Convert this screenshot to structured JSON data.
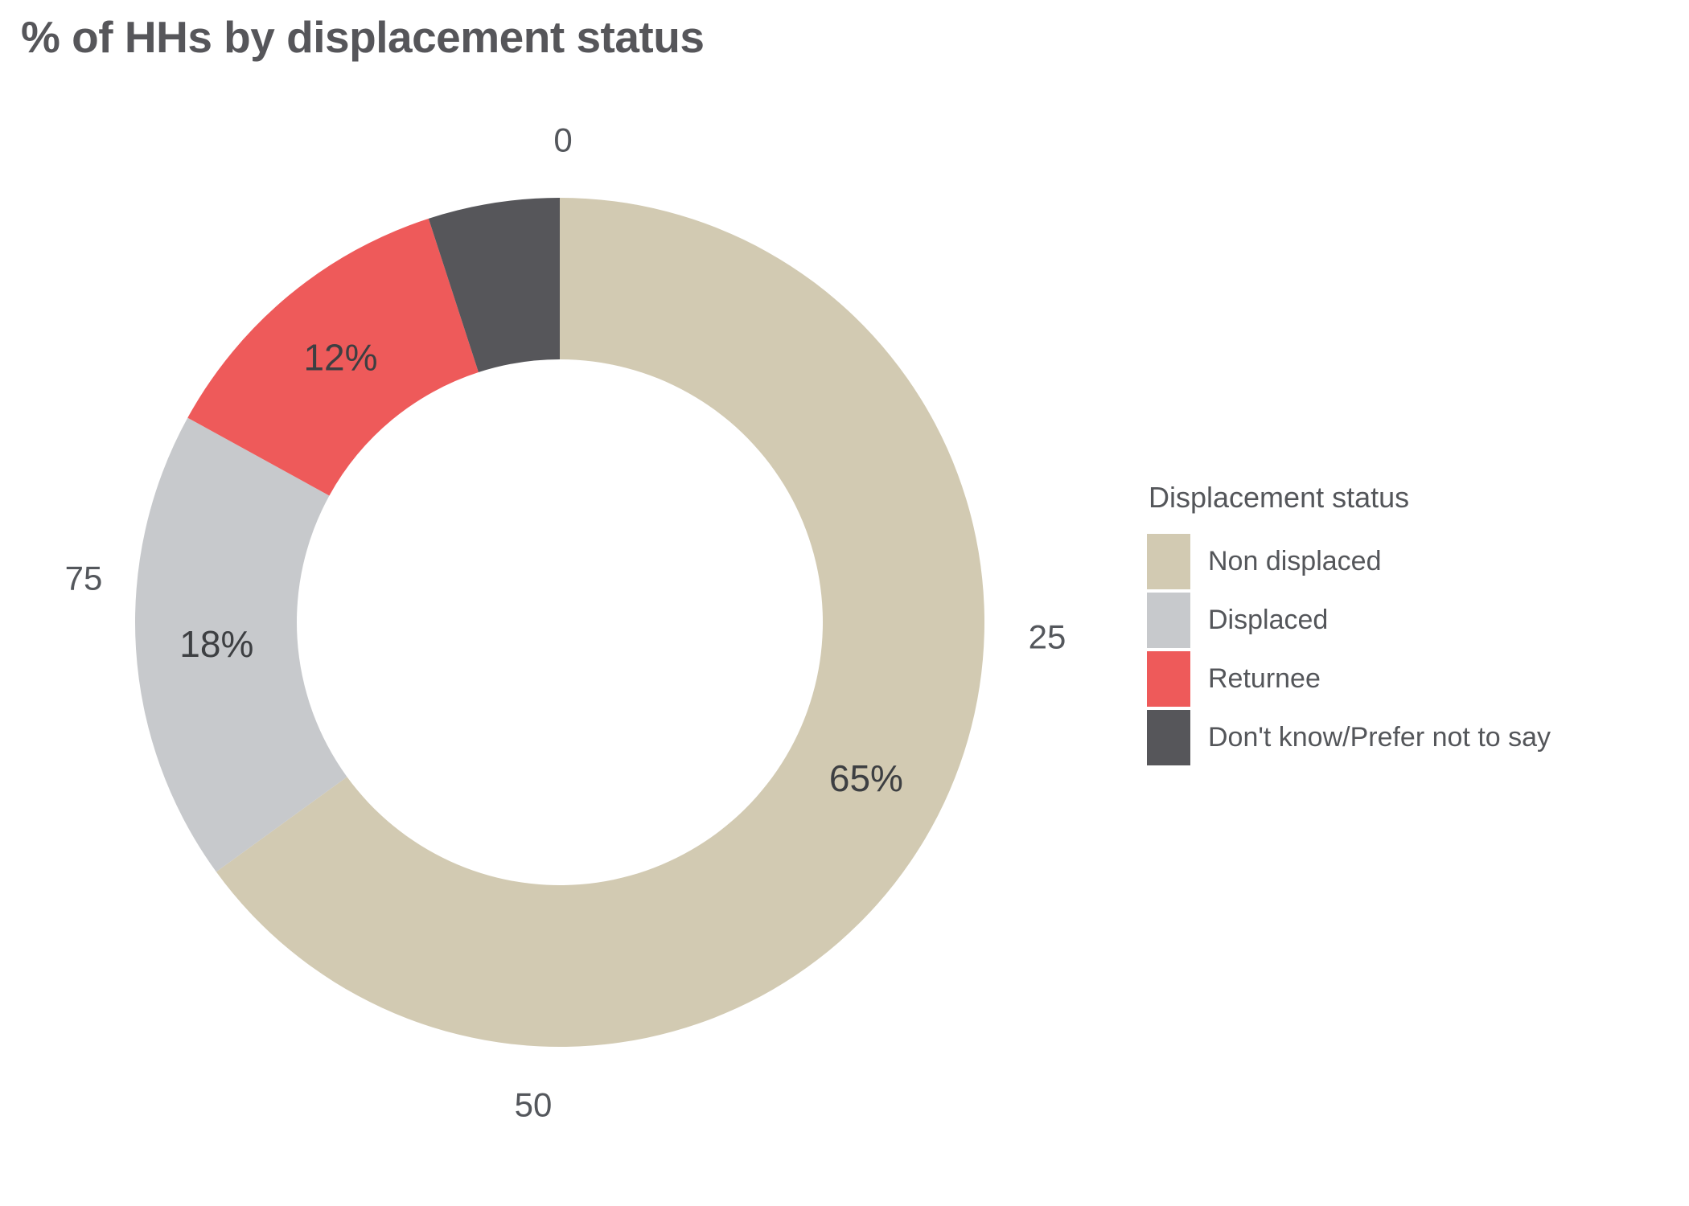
{
  "chart_data": {
    "type": "pie",
    "subtype": "donut",
    "title": "% of HHs by displacement status",
    "legend_title": "Displacement status",
    "legend_position": "right",
    "categories": [
      "Non displaced",
      "Displaced",
      "Returnee",
      "Don't know/Prefer not to say"
    ],
    "values": [
      65,
      18,
      12,
      5
    ],
    "data_labels": [
      "65%",
      "18%",
      "12%",
      null
    ],
    "colors": [
      "#d2cab2",
      "#c7c9cc",
      "#ee5a5a",
      "#56565a"
    ],
    "axis_ticks": [
      0,
      25,
      50,
      75
    ],
    "axis_range": [
      0,
      100
    ],
    "start_angle": "top",
    "direction": "clockwise",
    "grid": false,
    "text_colors": {
      "title": "#56565a",
      "ticks": "#54575c",
      "data_labels": "#3d3f42",
      "legend": "#54565a"
    }
  }
}
